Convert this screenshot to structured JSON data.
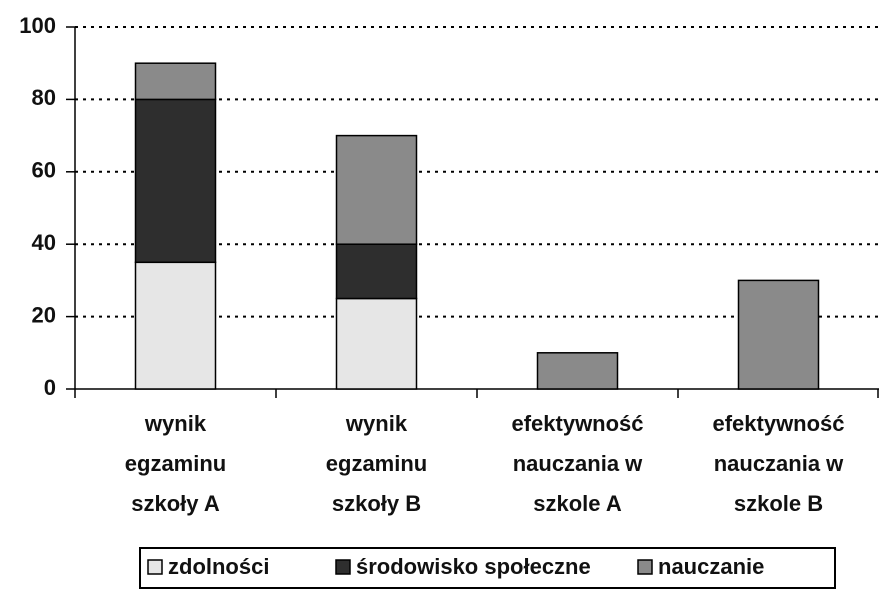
{
  "chart_data": {
    "type": "stacked_bar",
    "categories": [
      "wynik\negzaminu\nszkoły A",
      "wynik\negzaminu\nszkoły B",
      "efektywność\nnauczania w\nszkole A",
      "efektywność\nnauczania w\nszkole B"
    ],
    "series": [
      {
        "name": "zdolności",
        "color": "#e6e6e6",
        "values": [
          35,
          25,
          0,
          0
        ]
      },
      {
        "name": "środowisko społeczne",
        "color": "#2e2e2e",
        "values": [
          45,
          15,
          0,
          0
        ]
      },
      {
        "name": "nauczanie",
        "color": "#8a8a8a",
        "values": [
          10,
          30,
          10,
          30
        ]
      }
    ],
    "ylim": [
      0,
      100
    ],
    "yticks": [
      0,
      20,
      40,
      60,
      80,
      100
    ],
    "grid": true,
    "legend": "bottom"
  }
}
